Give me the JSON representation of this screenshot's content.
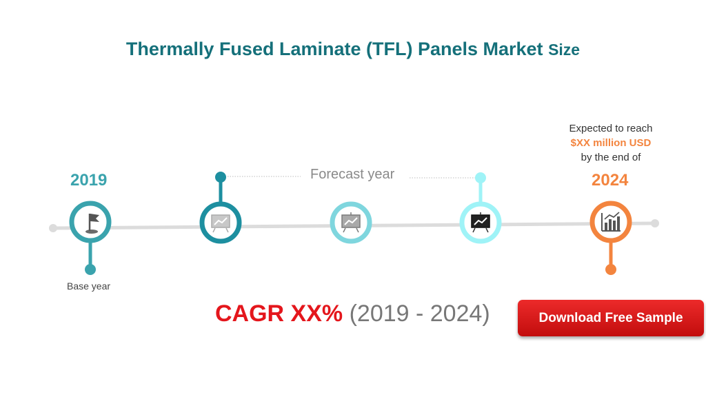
{
  "title": {
    "main": "Thermally Fused Laminate (TFL) Panels Market",
    "suffix": "Size"
  },
  "timeline": {
    "start_year": "2019",
    "end_year": "2024",
    "base_label": "Base year",
    "forecast_label": "Forecast year",
    "expected": {
      "line1": "Expected to reach",
      "amount": "$XX million USD",
      "line3": "by the end of"
    },
    "node_colors": [
      "#3aa3ad",
      "#1d8fa0",
      "#7fd6de",
      "#9ff3f7",
      "#f3843e"
    ],
    "icons": [
      "flag-icon",
      "presentation-chart-icon",
      "presentation-chart-icon",
      "presentation-chart-icon",
      "bar-chart-icon"
    ]
  },
  "cagr": {
    "value": "CAGR XX%",
    "range": "(2019 - 2024)"
  },
  "cta": {
    "label": "Download Free Sample"
  }
}
